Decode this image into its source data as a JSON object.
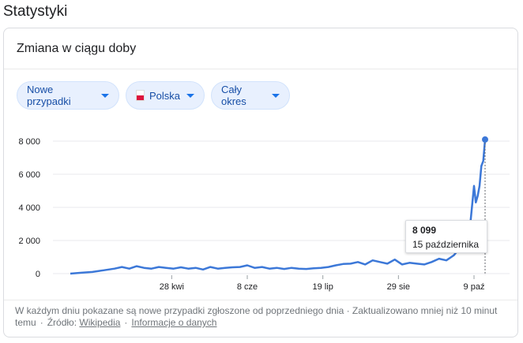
{
  "section_title": "Statystyki",
  "card": {
    "title": "Zmiana w ciągu doby"
  },
  "filters": {
    "metric": "Nowe przypadki",
    "region": "Polska",
    "period": "Cały okres",
    "region_flag_colors": [
      "#ffffff",
      "#dc143c"
    ]
  },
  "tooltip": {
    "value": "8 099",
    "date": "15 października"
  },
  "footer": {
    "text": "W każdym dniu pokazane są nowe przypadki zgłoszone od poprzedniego dnia · Zaktualizowano mniej niż 10 minut temu",
    "source_label": "Źródło:",
    "source_link": "Wikipedia",
    "about_link": "Informacje o danych"
  },
  "colors": {
    "line": "#3c78d8",
    "grid": "#e8eaed",
    "chip_bg": "#e8f0fe",
    "chip_text": "#174ea6"
  },
  "chart_data": {
    "type": "line",
    "title": "",
    "xlabel": "",
    "ylabel": "",
    "ylim": [
      0,
      8000
    ],
    "yticks": [
      0,
      2000,
      4000,
      6000,
      8000
    ],
    "ytick_labels": [
      "0",
      "2 000",
      "4 000",
      "6 000",
      "8 000"
    ],
    "xtick_labels": [
      "28 kwi",
      "8 cze",
      "19 lip",
      "29 sie",
      "9 paź"
    ],
    "x_start": "2020-03-04",
    "x_end": "2020-10-15",
    "xtick_dates": [
      "2020-04-28",
      "2020-06-08",
      "2020-07-19",
      "2020-08-29",
      "2020-10-09"
    ],
    "series": [
      {
        "name": "",
        "x": [
          "2020-03-04",
          "2020-03-10",
          "2020-03-16",
          "2020-03-22",
          "2020-03-28",
          "2020-04-01",
          "2020-04-05",
          "2020-04-09",
          "2020-04-13",
          "2020-04-17",
          "2020-04-21",
          "2020-04-25",
          "2020-04-29",
          "2020-05-03",
          "2020-05-07",
          "2020-05-11",
          "2020-05-15",
          "2020-05-19",
          "2020-05-23",
          "2020-05-27",
          "2020-05-31",
          "2020-06-04",
          "2020-06-08",
          "2020-06-12",
          "2020-06-16",
          "2020-06-20",
          "2020-06-24",
          "2020-06-28",
          "2020-07-02",
          "2020-07-06",
          "2020-07-10",
          "2020-07-14",
          "2020-07-18",
          "2020-07-22",
          "2020-07-26",
          "2020-07-30",
          "2020-08-03",
          "2020-08-07",
          "2020-08-11",
          "2020-08-15",
          "2020-08-19",
          "2020-08-23",
          "2020-08-27",
          "2020-08-31",
          "2020-09-04",
          "2020-09-08",
          "2020-09-12",
          "2020-09-16",
          "2020-09-20",
          "2020-09-24",
          "2020-09-28",
          "2020-10-01",
          "2020-10-03",
          "2020-10-05",
          "2020-10-07",
          "2020-10-09",
          "2020-10-10",
          "2020-10-11",
          "2020-10-12",
          "2020-10-13",
          "2020-10-14",
          "2020-10-15"
        ],
        "values": [
          0,
          50,
          100,
          200,
          300,
          400,
          300,
          450,
          350,
          300,
          400,
          350,
          300,
          380,
          300,
          350,
          250,
          400,
          300,
          350,
          380,
          400,
          500,
          350,
          400,
          300,
          350,
          280,
          350,
          300,
          280,
          320,
          350,
          400,
          500,
          580,
          600,
          700,
          550,
          800,
          700,
          600,
          850,
          550,
          650,
          600,
          550,
          700,
          900,
          800,
          1100,
          1500,
          2000,
          2500,
          3000,
          5300,
          4300,
          4700,
          5300,
          6500,
          6800,
          8099
        ]
      }
    ]
  }
}
